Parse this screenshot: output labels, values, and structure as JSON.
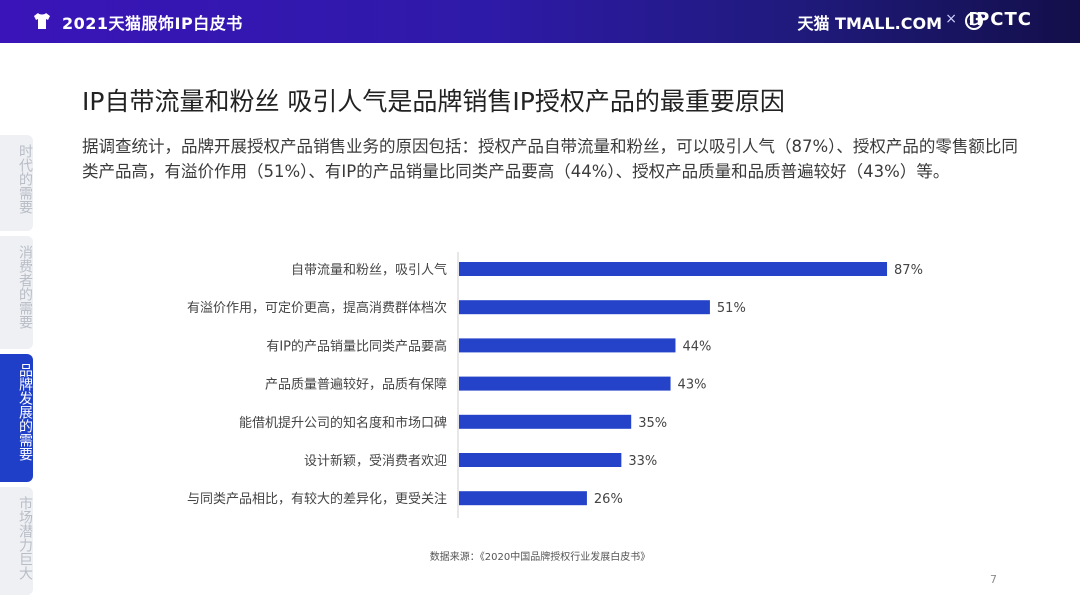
{
  "header": {
    "title": "2021天猫服饰IP白皮书",
    "brand": "天猫 TMALL.COM",
    "separator": "×",
    "partner": "IPCTC"
  },
  "sidebar": {
    "items": [
      {
        "label": "时代的需要",
        "active": false
      },
      {
        "label": "消费者的需要",
        "active": false
      },
      {
        "label": "品牌发展的需要",
        "active": true
      },
      {
        "label": "市场潜力巨大",
        "active": false
      }
    ]
  },
  "main": {
    "title": "IP自带流量和粉丝  吸引人气是品牌销售IP授权产品的最重要原因",
    "intro": "据调查统计，品牌开展授权产品销售业务的原因包括：授权产品自带流量和粉丝，可以吸引人气（87%）、授权产品的零售额比同类产品高，有溢价作用（51%）、有IP的产品销量比同类产品要高（44%）、授权产品质量和品质普遍较好（43%）等。",
    "source": "数据来源：《2020中国品牌授权行业发展白皮书》",
    "page_number": "7"
  },
  "chart_data": {
    "type": "bar",
    "orientation": "horizontal",
    "categories": [
      "自带流量和粉丝，吸引人气",
      "有溢价作用，可定价更高，提高消费群体档次",
      "有IP的产品销量比同类产品要高",
      "产品质量普遍较好，品质有保障",
      "能借机提升公司的知名度和市场口碑",
      "设计新颖，受消费者欢迎",
      "与同类产品相比，有较大的差异化，更受关注"
    ],
    "values": [
      87,
      51,
      44,
      43,
      35,
      33,
      26
    ],
    "value_labels": [
      "87%",
      "51%",
      "44%",
      "43%",
      "35%",
      "33%",
      "26%"
    ],
    "unit": "%",
    "xlim": [
      0,
      100
    ],
    "bar_color": "#2443c9",
    "grid": false,
    "legend": "none"
  },
  "colors": {
    "accent": "#1f3fc9",
    "header_start": "#3a14b8",
    "header_end": "#130f4a"
  },
  "icons": {
    "header_left": "tshirt-icon",
    "header_face": "smiley-face-icon"
  }
}
